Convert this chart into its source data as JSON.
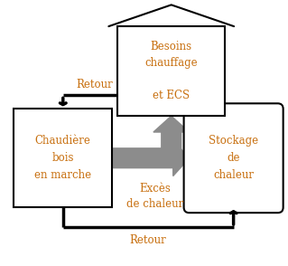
{
  "bg_color": "#ffffff",
  "text_color": "#c87010",
  "box_color": "#000000",
  "arrow_gray": "#8c8c8c",
  "boiler_text": "Chaudière\nbois\nen marche",
  "storage_text": "Stockage\nde\nchaleur",
  "house_text": "Besoins\nchauffage\n\net ECS",
  "retour_top": "Retour",
  "retour_bottom": "Retour",
  "exces_text": "Excès\nde chaleur",
  "figsize": [
    3.19,
    2.94
  ],
  "dpi": 100
}
